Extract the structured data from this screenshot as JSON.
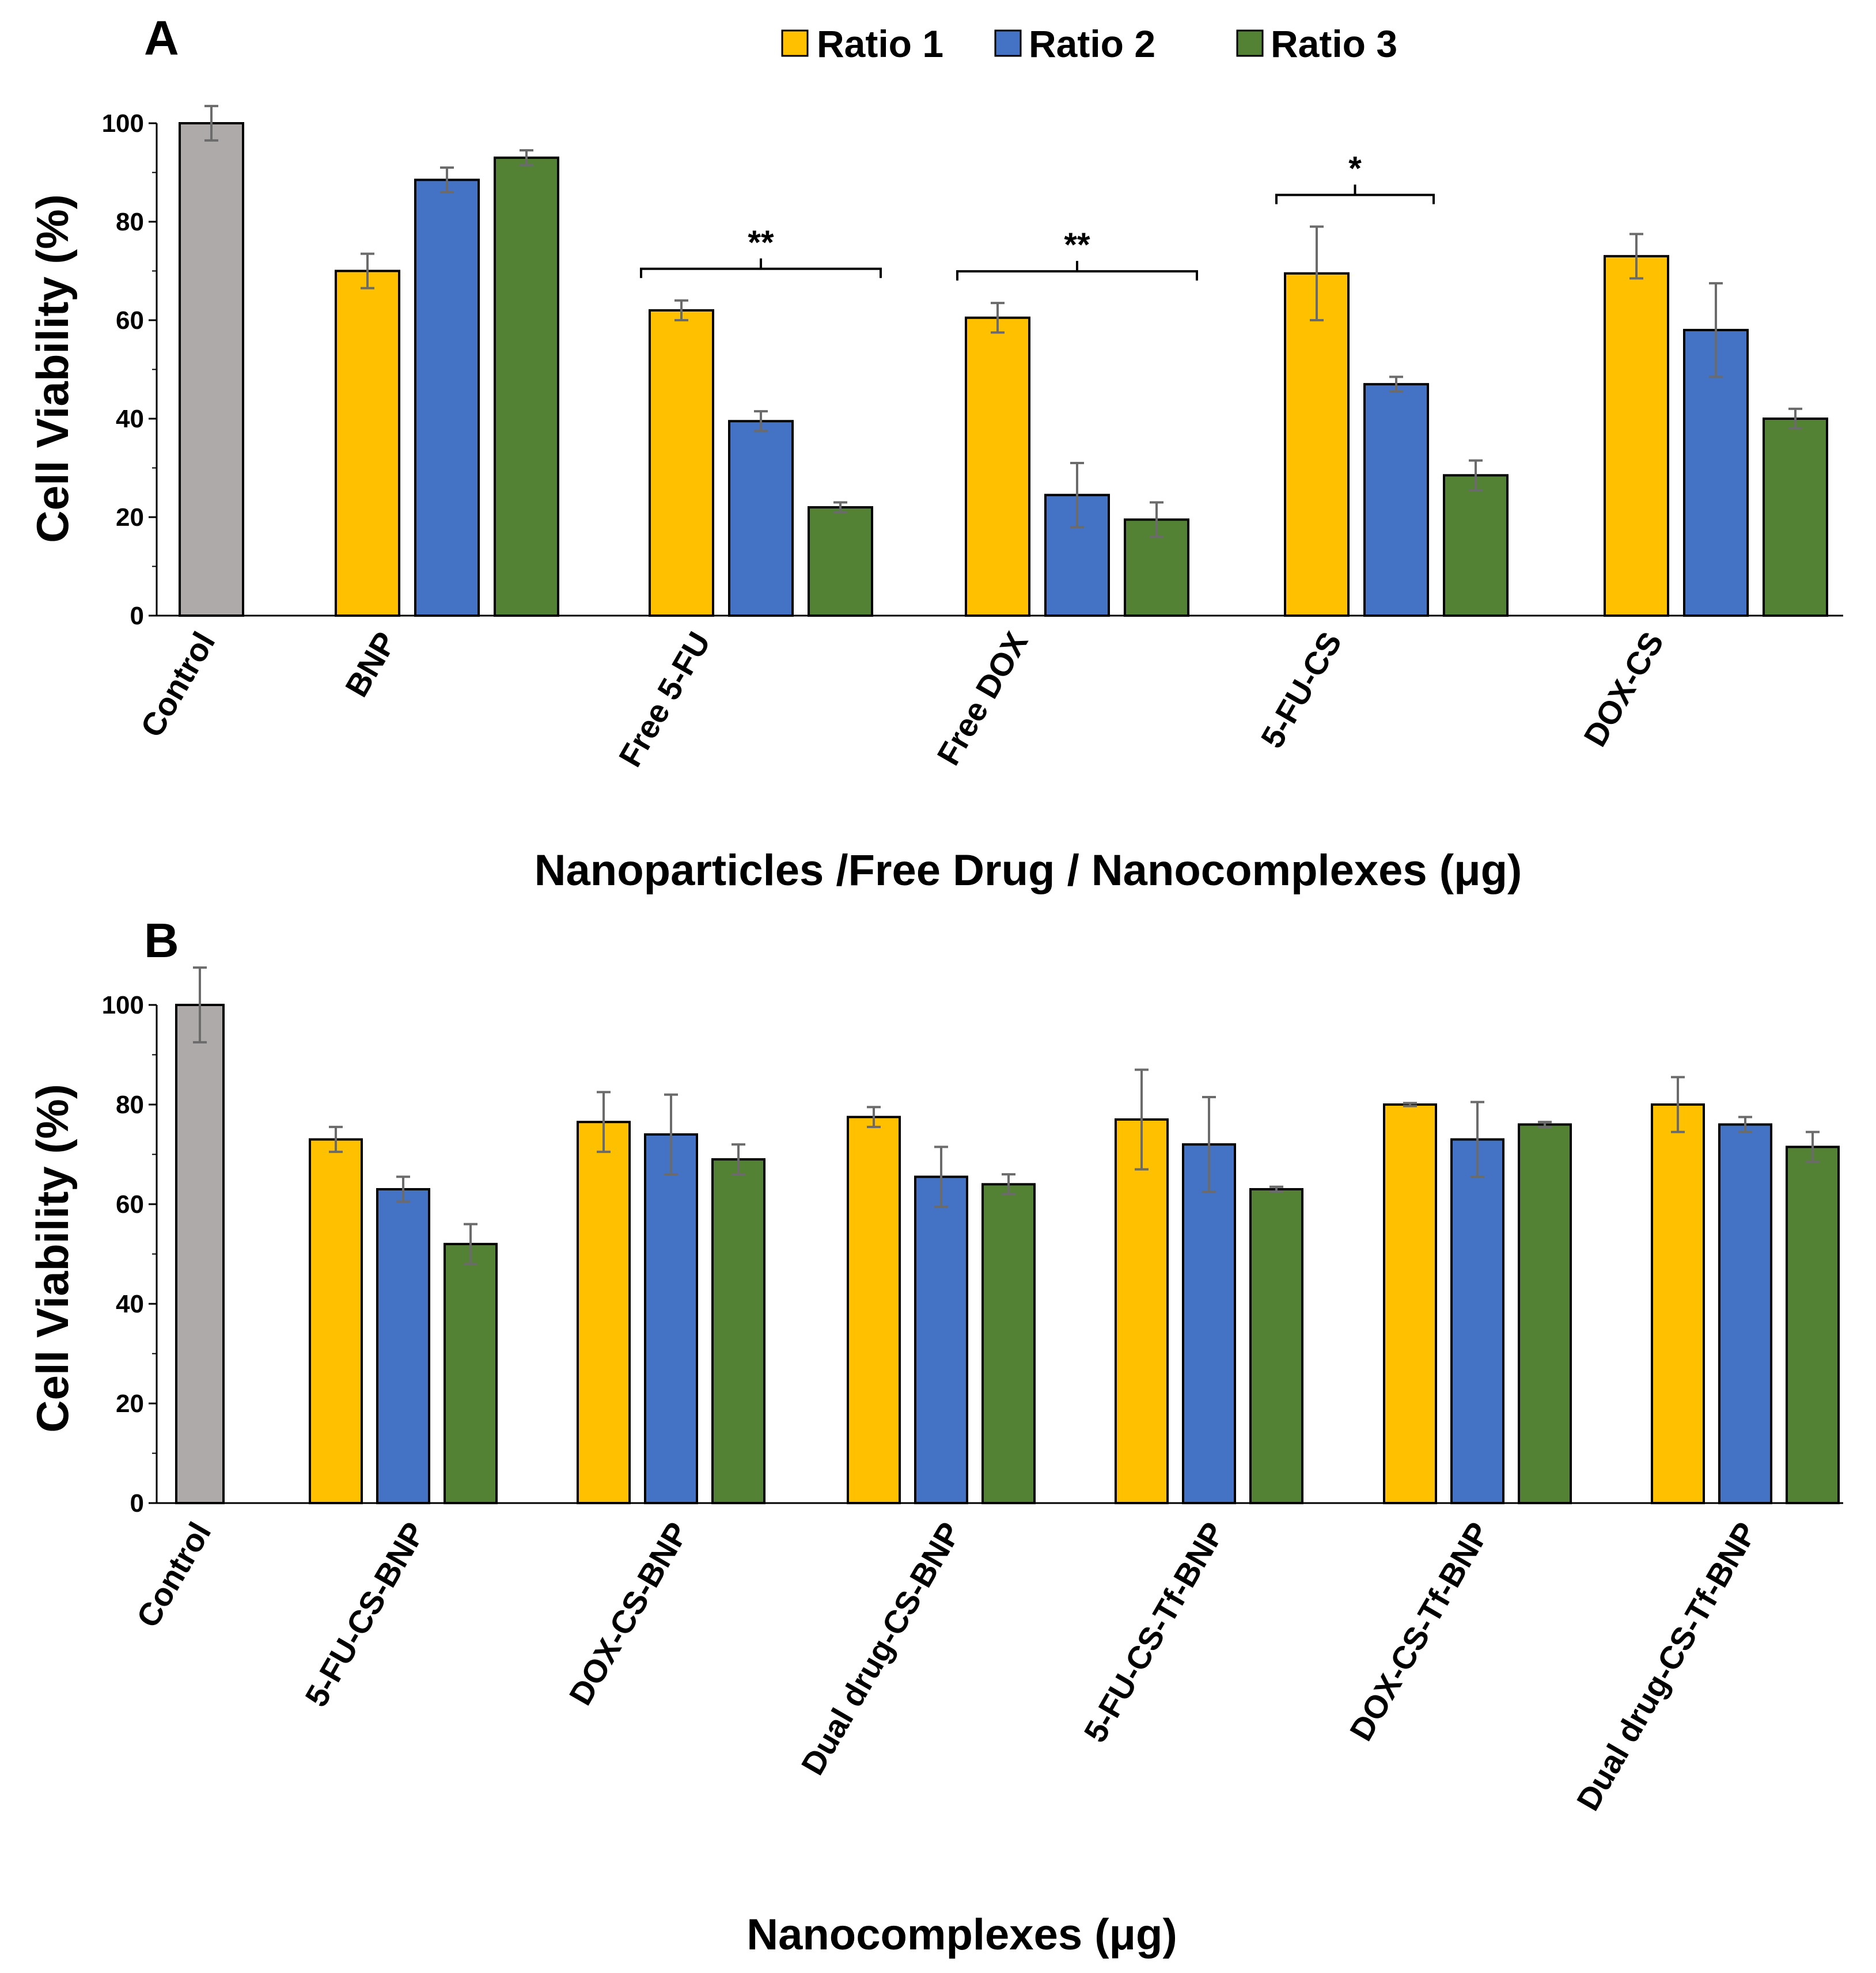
{
  "legend": [
    {
      "label": "Ratio 1",
      "color": "#FFC000"
    },
    {
      "label": "Ratio 2",
      "color": "#4472C4"
    },
    {
      "label": "Ratio 3",
      "color": "#548235"
    }
  ],
  "control_color": "#AEAAAA",
  "errorbar_color": "#6B6B6B",
  "chart_data": [
    {
      "type": "bar",
      "panel": "A",
      "title": "",
      "xlabel": "Nanoparticles /Free Drug / Nanocomplexes (μg)",
      "ylabel": "Cell Viability (%)",
      "ylim": [
        0,
        100
      ],
      "yticks": [
        "0",
        "20",
        "40",
        "60",
        "80",
        "100"
      ],
      "control": {
        "label": "Control",
        "value": 100,
        "error": 3.5
      },
      "categories": [
        "BNP",
        "Free 5-FU",
        "Free DOX",
        "5-FU-CS",
        "DOX-CS"
      ],
      "series": [
        {
          "name": "Ratio 1",
          "values": [
            70,
            62,
            60.5,
            69.5,
            73
          ],
          "errors": [
            3.5,
            2,
            3,
            9.5,
            4.5
          ]
        },
        {
          "name": "Ratio 2",
          "values": [
            88.5,
            39.5,
            24.5,
            47,
            58
          ],
          "errors": [
            2.5,
            2,
            6.5,
            1.5,
            9.5
          ]
        },
        {
          "name": "Ratio 3",
          "values": [
            93,
            22,
            19.5,
            28.5,
            40
          ],
          "errors": [
            1.5,
            1,
            3.5,
            3,
            2
          ]
        }
      ],
      "annotations": [
        {
          "category": "Free 5-FU",
          "text": "**"
        },
        {
          "category": "Free DOX",
          "text": "**"
        },
        {
          "category": "5-FU-CS",
          "text": "*"
        }
      ]
    },
    {
      "type": "bar",
      "panel": "B",
      "title": "",
      "xlabel": "Nanocomplexes (μg)",
      "ylabel": "Cell Viability (%)",
      "ylim": [
        0,
        100
      ],
      "yticks": [
        "0",
        "20",
        "40",
        "60",
        "80",
        "100"
      ],
      "control": {
        "label": "Control",
        "value": 100,
        "error": 7.5
      },
      "categories": [
        "5-FU-CS-BNP",
        "DOX-CS-BNP",
        "Dual drug-CS-BNP",
        "5-FU-CS-Tf-BNP",
        "DOX-CS-Tf-BNP",
        "Dual drug-CS-Tf-BNP"
      ],
      "series": [
        {
          "name": "Ratio 1",
          "values": [
            73,
            76.5,
            77.5,
            77,
            80,
            80
          ],
          "errors": [
            2.5,
            6,
            2,
            10,
            0.3,
            5.5
          ]
        },
        {
          "name": "Ratio 2",
          "values": [
            63,
            74,
            65.5,
            72,
            73,
            76
          ],
          "errors": [
            2.5,
            8,
            6,
            9.5,
            7.5,
            1.5
          ]
        },
        {
          "name": "Ratio 3",
          "values": [
            52,
            69,
            64,
            63,
            76,
            71.5
          ],
          "errors": [
            4,
            3,
            2,
            0.5,
            0.5,
            3
          ]
        }
      ],
      "annotations": []
    }
  ]
}
